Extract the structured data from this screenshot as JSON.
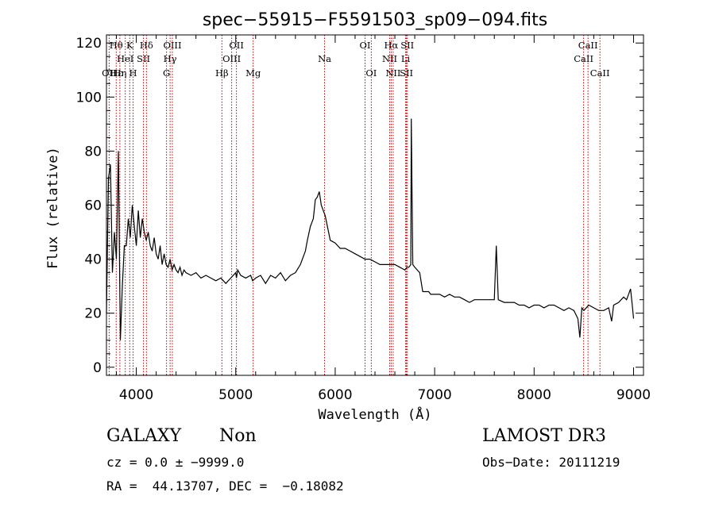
{
  "chart_data": {
    "type": "line",
    "title": "spec−55915−F5591503_sp09−094.fits",
    "xlabel": "Wavelength (Å)",
    "ylabel": "Flux (relative)",
    "xlim": [
      3700,
      9100
    ],
    "ylim": [
      -3,
      123
    ],
    "x_ticks": [
      4000,
      5000,
      6000,
      7000,
      8000,
      9000
    ],
    "y_ticks": [
      0,
      20,
      40,
      60,
      80,
      100,
      120
    ],
    "grid": false,
    "series": [
      {
        "name": "flux",
        "x": [
          3700,
          3720,
          3740,
          3760,
          3780,
          3800,
          3820,
          3840,
          3860,
          3880,
          3900,
          3920,
          3940,
          3960,
          3980,
          4000,
          4020,
          4040,
          4060,
          4080,
          4100,
          4120,
          4140,
          4160,
          4180,
          4200,
          4220,
          4240,
          4260,
          4280,
          4300,
          4320,
          4340,
          4360,
          4380,
          4400,
          4420,
          4440,
          4460,
          4480,
          4500,
          4550,
          4600,
          4650,
          4700,
          4750,
          4800,
          4850,
          4900,
          4950,
          5000,
          5007,
          5020,
          5050,
          5100,
          5150,
          5170,
          5200,
          5250,
          5300,
          5350,
          5400,
          5450,
          5500,
          5550,
          5600,
          5650,
          5700,
          5720,
          5750,
          5780,
          5800,
          5820,
          5840,
          5860,
          5880,
          5900,
          5950,
          6000,
          6050,
          6100,
          6150,
          6200,
          6250,
          6300,
          6350,
          6400,
          6450,
          6500,
          6550,
          6600,
          6650,
          6700,
          6720,
          6740,
          6760,
          6765,
          6780,
          6800,
          6850,
          6880,
          6900,
          6920,
          6940,
          6960,
          7000,
          7050,
          7100,
          7150,
          7200,
          7250,
          7300,
          7350,
          7400,
          7450,
          7500,
          7550,
          7600,
          7620,
          7640,
          7700,
          7750,
          7800,
          7850,
          7900,
          7950,
          8000,
          8050,
          8100,
          8150,
          8200,
          8250,
          8300,
          8350,
          8400,
          8440,
          8460,
          8480,
          8500,
          8550,
          8600,
          8650,
          8700,
          8750,
          8780,
          8800,
          8850,
          8900,
          8930,
          8950,
          8970,
          8990,
          9000
        ],
        "y": [
          20,
          70,
          75,
          35,
          50,
          40,
          80,
          10,
          30,
          45,
          45,
          55,
          48,
          60,
          52,
          45,
          58,
          48,
          55,
          50,
          47,
          50,
          45,
          43,
          48,
          42,
          40,
          45,
          38,
          42,
          38,
          37,
          40,
          36,
          38,
          36,
          35,
          37,
          34,
          36,
          35,
          34,
          35,
          33,
          34,
          33,
          32,
          33,
          31,
          33,
          35,
          33,
          36,
          34,
          33,
          34,
          32,
          33,
          34,
          31,
          34,
          33,
          35,
          32,
          34,
          35,
          38,
          43,
          47,
          52,
          55,
          62,
          63,
          65,
          60,
          58,
          56,
          47,
          46,
          44,
          44,
          43,
          42,
          41,
          40,
          40,
          39,
          38,
          38,
          38,
          38,
          37,
          36,
          37,
          37,
          38,
          92,
          38,
          37,
          35,
          28,
          28,
          28,
          28,
          27,
          27,
          27,
          26,
          27,
          26,
          26,
          25,
          24,
          25,
          25,
          25,
          25,
          25,
          45,
          25,
          24,
          24,
          24,
          23,
          23,
          22,
          23,
          23,
          22,
          23,
          23,
          22,
          21,
          22,
          21,
          18,
          11,
          22,
          21,
          23,
          22,
          21,
          21,
          22,
          17,
          23,
          24,
          26,
          25,
          27,
          29,
          22,
          18
        ]
      }
    ],
    "line_labels": {
      "row1": [
        {
          "text": "Hθ",
          "x": 3798
        },
        {
          "text": "K",
          "x": 3934
        },
        {
          "text": "Hδ",
          "x": 4102
        },
        {
          "text": "OIII",
          "x": 4363
        },
        {
          "text": "OII",
          "x": 5007
        },
        {
          "text": "OI",
          "x": 6300
        },
        {
          "text": "Hα",
          "x": 6563
        },
        {
          "text": "SII",
          "x": 6725
        },
        {
          "text": "CaII",
          "x": 8542
        }
      ],
      "row2": [
        {
          "text": "HeI",
          "x": 3889
        },
        {
          "text": "SII",
          "x": 4072
        },
        {
          "text": "Hγ",
          "x": 4340
        },
        {
          "text": "OIII",
          "x": 4959
        },
        {
          "text": "Na",
          "x": 5893
        },
        {
          "text": "NII",
          "x": 6548
        },
        {
          "text": "Li",
          "x": 6708
        },
        {
          "text": "CaII",
          "x": 8498
        }
      ],
      "row3": [
        {
          "text": "OII",
          "x": 3727
        },
        {
          "text": "Hε",
          "x": 3800
        },
        {
          "text": "Hη",
          "x": 3835
        },
        {
          "text": "H",
          "x": 3968
        },
        {
          "text": "G",
          "x": 4304
        },
        {
          "text": "Hβ",
          "x": 4861
        },
        {
          "text": "Mg",
          "x": 5175
        },
        {
          "text": "OI",
          "x": 6363
        },
        {
          "text": "NII",
          "x": 6583
        },
        {
          "text": "SII",
          "x": 6716
        },
        {
          "text": "CaII",
          "x": 8662
        }
      ],
      "line_color": "#c00000"
    },
    "marker_lines_x": [
      3727,
      3798,
      3835,
      3889,
      3934,
      3968,
      4072,
      4102,
      4304,
      4340,
      4363,
      4861,
      4959,
      5007,
      5175,
      5893,
      6300,
      6363,
      6548,
      6563,
      6583,
      6708,
      6716,
      6725,
      8498,
      8542,
      8662
    ]
  },
  "info": {
    "object_class": "GALAXY",
    "subclass": "Non",
    "survey": "LAMOST DR3",
    "redshift": "cz = 0.0 ± −9999.0",
    "obs_date": "Obs−Date: 20111219",
    "coords": "RA =  44.13707, DEC =  −0.18082"
  }
}
